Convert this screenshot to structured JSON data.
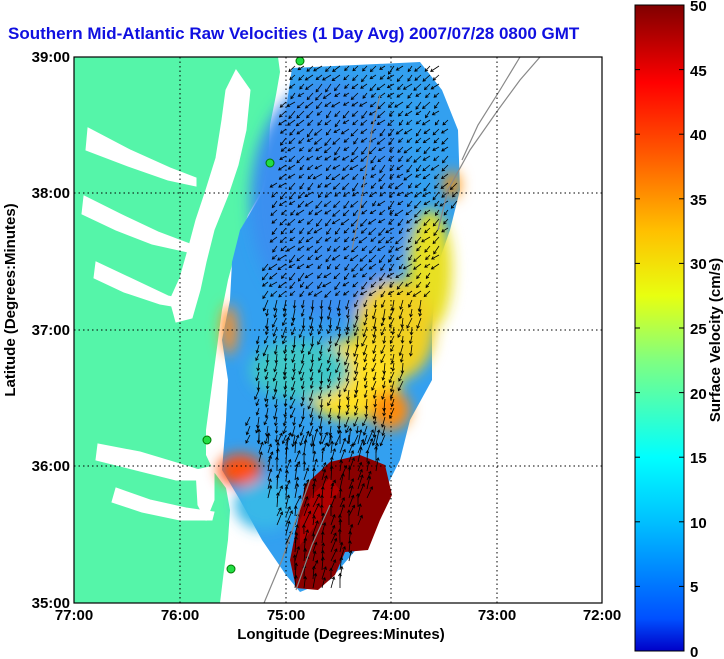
{
  "title": "Southern Mid-Atlantic Raw Velocities (1 Day Avg) 2007/07/28 0800 GMT",
  "map": {
    "xlabel": "Longitude (Degrees:Minutes)",
    "ylabel": "Latitude (Degrees:Minutes)",
    "lon_ticks": [
      "77:00",
      "76:00",
      "75:00",
      "74:00",
      "73:00",
      "72:00"
    ],
    "lat_ticks": [
      "39:00",
      "38:00",
      "37:00",
      "36:00",
      "35:00"
    ],
    "lon_range": [
      -77,
      -72
    ],
    "lat_range": [
      35,
      39
    ],
    "land_color": "#55f5a9",
    "water_color": "#ffffff",
    "grid": true
  },
  "colorbar": {
    "label": "Surface Velocity (cm/s)",
    "ticks": [
      "0",
      "5",
      "10",
      "15",
      "20",
      "25",
      "30",
      "35",
      "40",
      "45",
      "50"
    ],
    "range": [
      0,
      50
    ],
    "colormap": "jet",
    "unit": "cm/s"
  }
}
